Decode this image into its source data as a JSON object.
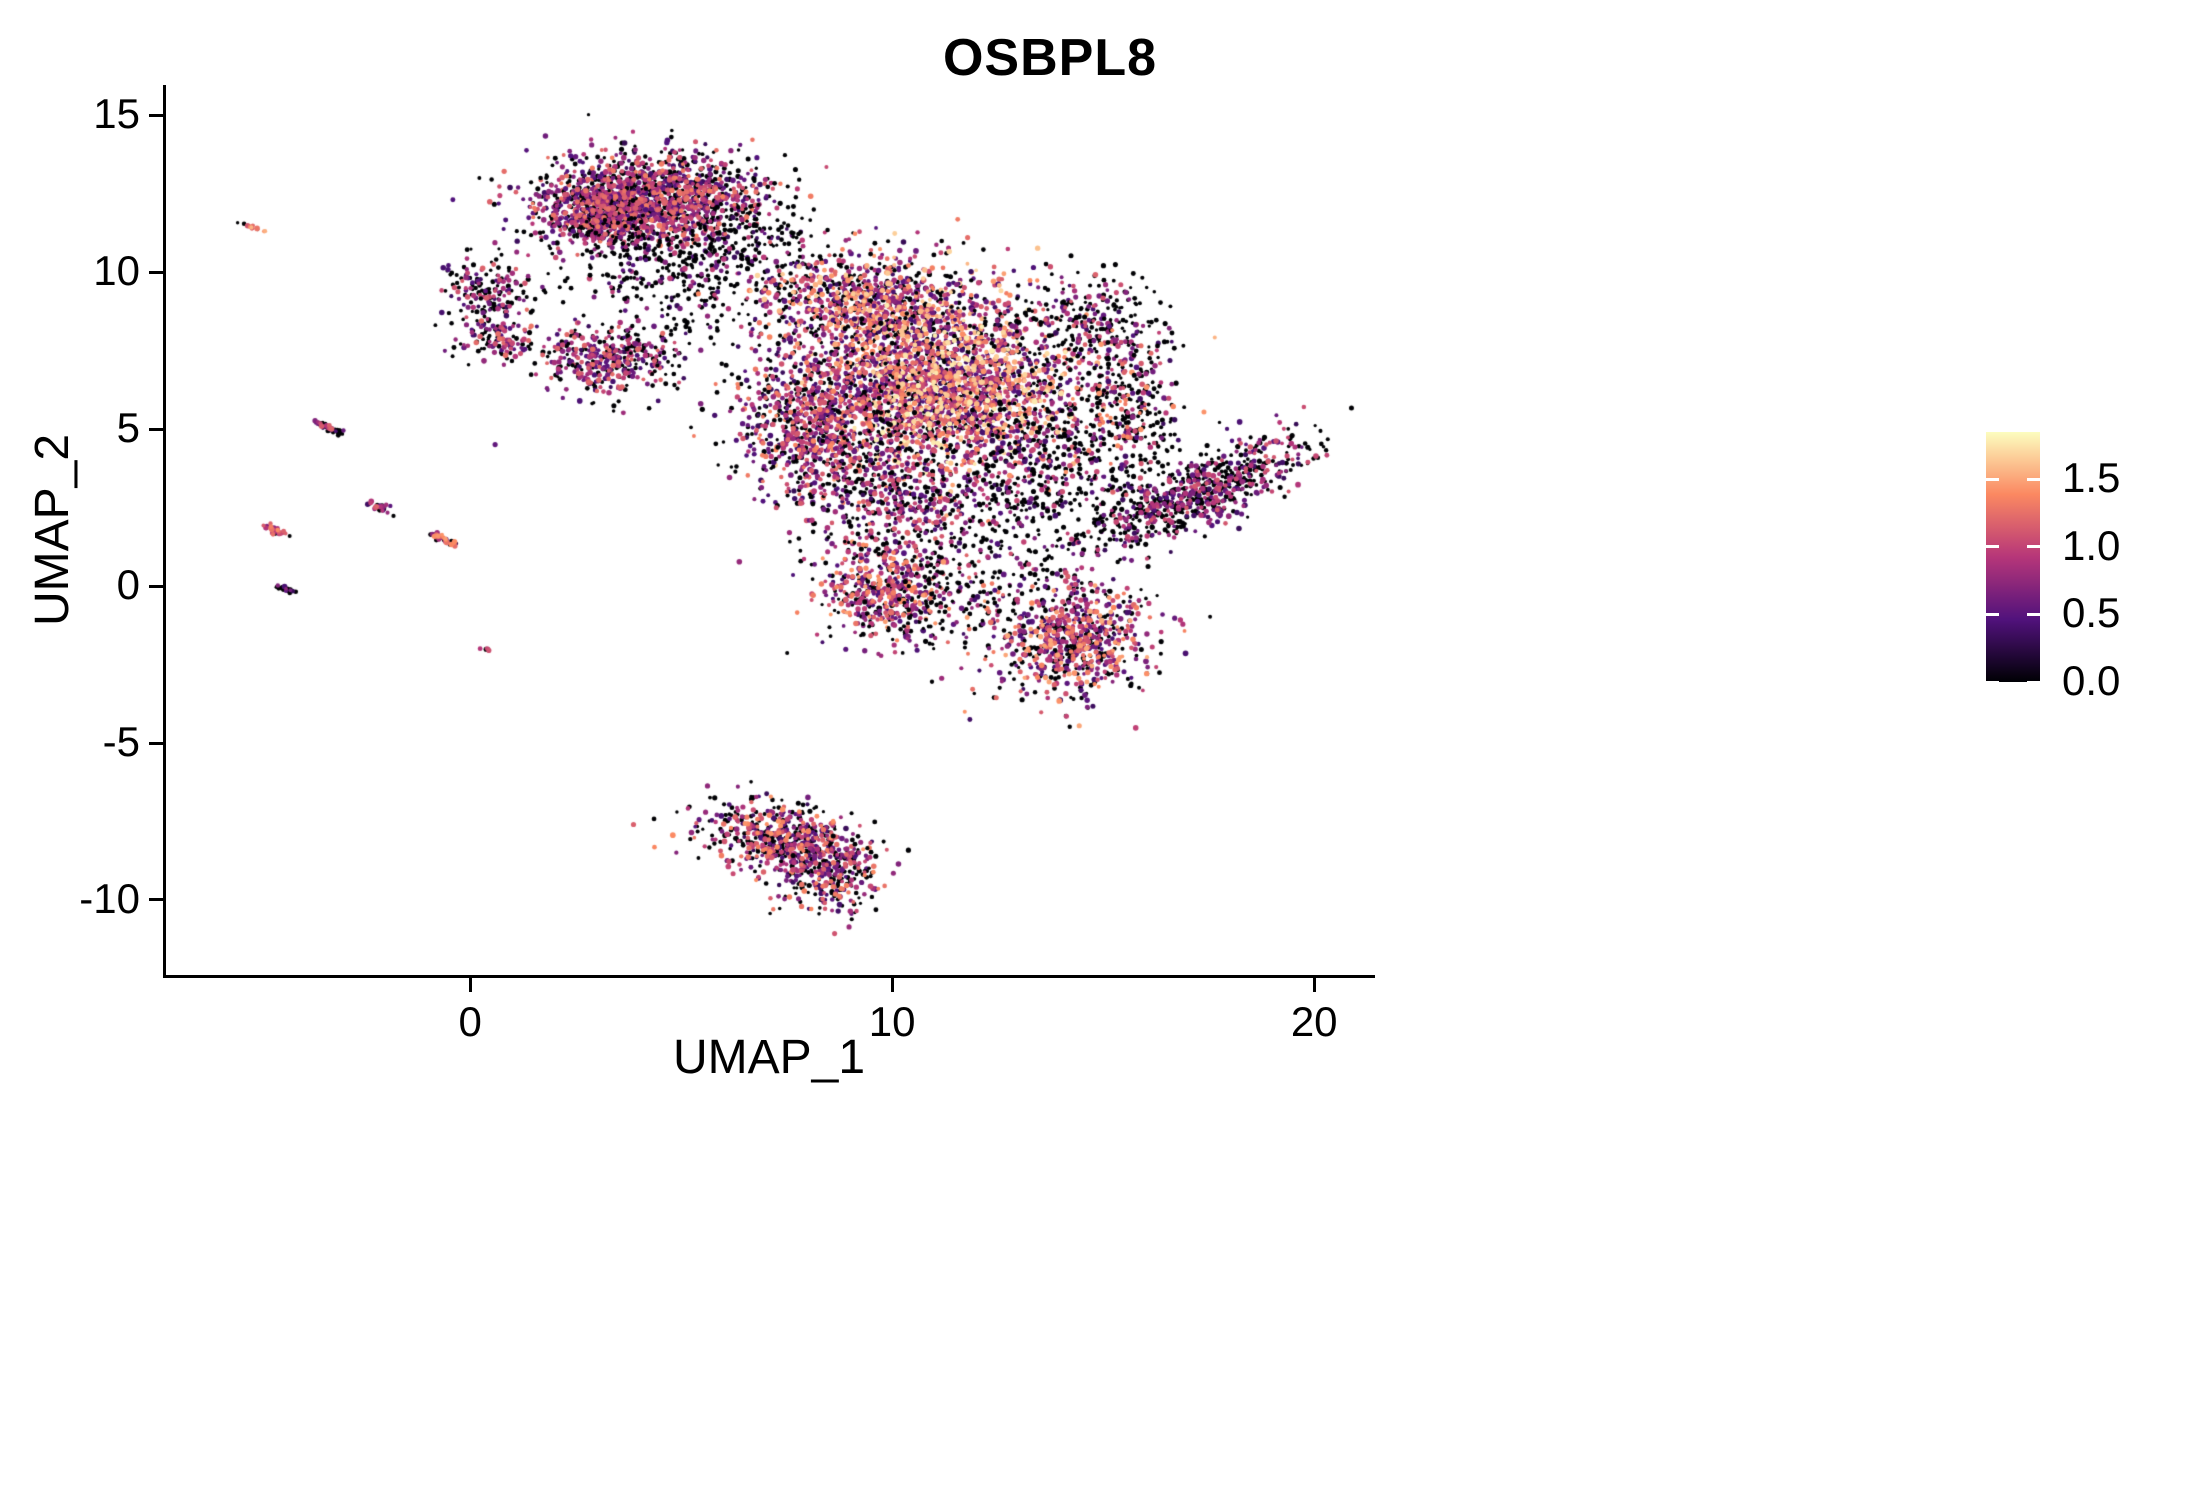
{
  "title": "OSBPL8",
  "chart_data": {
    "type": "scatter",
    "title": "OSBPL8",
    "subtitle": "",
    "xlabel": "UMAP_1",
    "ylabel": "UMAP_2",
    "xlim": [
      -7.23,
      21.37
    ],
    "ylim": [
      -12.39,
      15.96
    ],
    "grid": false,
    "legend_position": "right",
    "xticks": [
      {
        "value": 0,
        "label": "0"
      },
      {
        "value": 10,
        "label": "10"
      },
      {
        "value": 20,
        "label": "20"
      }
    ],
    "yticks": [
      {
        "value": -10,
        "label": "-10"
      },
      {
        "value": -5,
        "label": "-5"
      },
      {
        "value": 0,
        "label": "0"
      },
      {
        "value": 5,
        "label": "5"
      },
      {
        "value": 10,
        "label": "10"
      },
      {
        "value": 15,
        "label": "15"
      }
    ],
    "colorbar": {
      "vmin": 0,
      "vmax": 1.85,
      "colormap": "magma",
      "ticks": [
        {
          "value": 1.5,
          "label": "1.5"
        },
        {
          "value": 1.0,
          "label": "1.0"
        },
        {
          "value": 0.5,
          "label": "0.5"
        },
        {
          "value": 0.0,
          "label": "0.0"
        }
      ],
      "stops": [
        [
          0.0,
          "#000004"
        ],
        [
          0.25,
          "#51127c"
        ],
        [
          0.5,
          "#b63679"
        ],
        [
          0.75,
          "#fb8861"
        ],
        [
          1.0,
          "#fcfdbf"
        ]
      ]
    },
    "point_radius_px": {
      "min": 1.6,
      "max": 2.6
    },
    "seed": 7,
    "clusters": [
      {
        "name": "top-main",
        "n": 1500,
        "x": 4.3,
        "y": 12.3,
        "sx": 1.35,
        "sy": 0.75,
        "rot": 0,
        "zero": 0.38,
        "e0": 0.3,
        "e1": 1.35
      },
      {
        "name": "top-left-lobe",
        "n": 420,
        "x": 3.1,
        "y": 11.9,
        "sx": 0.6,
        "sy": 0.6,
        "rot": 0,
        "zero": 0.3,
        "e0": 0.4,
        "e1": 1.3
      },
      {
        "name": "top-under-sparse",
        "n": 330,
        "x": 5.0,
        "y": 10.2,
        "sx": 1.4,
        "sy": 0.9,
        "rot": 0,
        "zero": 0.75,
        "e0": 0.3,
        "e1": 1.0
      },
      {
        "name": "top-bridge",
        "n": 130,
        "x": 6.9,
        "y": 10.9,
        "sx": 1.0,
        "sy": 1.0,
        "rot": 0,
        "zero": 0.8,
        "e0": 0.3,
        "e1": 1.0
      },
      {
        "name": "left-small-a",
        "n": 170,
        "x": 0.3,
        "y": 9.4,
        "sx": 0.55,
        "sy": 0.5,
        "rot": 0,
        "zero": 0.45,
        "e0": 0.3,
        "e1": 1.2
      },
      {
        "name": "left-small-b",
        "n": 130,
        "x": 0.6,
        "y": 7.9,
        "sx": 0.5,
        "sy": 0.38,
        "rot": 0,
        "zero": 0.4,
        "e0": 0.3,
        "e1": 1.3
      },
      {
        "name": "mid-left",
        "n": 400,
        "x": 3.3,
        "y": 7.2,
        "sx": 0.75,
        "sy": 0.52,
        "rot": 0,
        "zero": 0.35,
        "e0": 0.3,
        "e1": 1.25
      },
      {
        "name": "mid-noise",
        "n": 90,
        "x": 4.5,
        "y": 8.8,
        "sx": 1.8,
        "sy": 1.5,
        "rot": 0,
        "zero": 0.85,
        "e0": 0.3,
        "e1": 0.9
      },
      {
        "name": "central-top",
        "n": 950,
        "x": 9.6,
        "y": 9.0,
        "sx": 1.35,
        "sy": 0.85,
        "rot": 0,
        "zero": 0.25,
        "e0": 0.3,
        "e1": 1.7
      },
      {
        "name": "central-main",
        "n": 2300,
        "x": 11.3,
        "y": 6.3,
        "sx": 1.5,
        "sy": 1.35,
        "rot": 0,
        "zero": 0.22,
        "e0": 0.3,
        "e1": 1.8
      },
      {
        "name": "central-left",
        "n": 900,
        "x": 8.3,
        "y": 5.2,
        "sx": 1.0,
        "sy": 1.2,
        "rot": 0,
        "zero": 0.3,
        "e0": 0.3,
        "e1": 1.4
      },
      {
        "name": "central-low",
        "n": 520,
        "x": 10.3,
        "y": 2.6,
        "sx": 1.3,
        "sy": 1.0,
        "rot": 0,
        "zero": 0.45,
        "e0": 0.3,
        "e1": 1.2
      },
      {
        "name": "central-bottom",
        "n": 520,
        "x": 9.9,
        "y": -0.2,
        "sx": 0.85,
        "sy": 0.75,
        "rot": 0,
        "zero": 0.3,
        "e0": 0.35,
        "e1": 1.5
      },
      {
        "name": "central-right-sparse",
        "n": 420,
        "x": 13.5,
        "y": 3.3,
        "sx": 1.0,
        "sy": 1.5,
        "rot": 0,
        "zero": 0.7,
        "e0": 0.3,
        "e1": 1.1
      },
      {
        "name": "arc-top",
        "n": 260,
        "x": 14.6,
        "y": 8.4,
        "sx": 0.85,
        "sy": 0.8,
        "rot": 0,
        "zero": 0.65,
        "e0": 0.3,
        "e1": 1.2
      },
      {
        "name": "arc-right",
        "n": 380,
        "x": 15.5,
        "y": 5.6,
        "sx": 0.65,
        "sy": 1.35,
        "rot": 0,
        "zero": 0.6,
        "e0": 0.3,
        "e1": 1.45
      },
      {
        "name": "right-arm",
        "n": 760,
        "x": 17.3,
        "y": 3.0,
        "sx": 1.5,
        "sy": 0.48,
        "rot": 0.58,
        "zero": 0.55,
        "e0": 0.3,
        "e1": 1.15
      },
      {
        "name": "noise-bridge-low",
        "n": 150,
        "x": 11.7,
        "y": -0.5,
        "sx": 1.2,
        "sy": 0.9,
        "rot": 0,
        "zero": 0.75,
        "e0": 0.3,
        "e1": 1.0
      },
      {
        "name": "low-right",
        "n": 760,
        "x": 14.3,
        "y": -1.7,
        "sx": 0.95,
        "sy": 0.95,
        "rot": -0.4,
        "zero": 0.32,
        "e0": 0.35,
        "e1": 1.55
      },
      {
        "name": "bottom-main",
        "n": 560,
        "x": 7.3,
        "y": -8.0,
        "sx": 0.95,
        "sy": 0.55,
        "rot": -0.2,
        "zero": 0.35,
        "e0": 0.3,
        "e1": 1.45
      },
      {
        "name": "bottom-tail",
        "n": 300,
        "x": 8.6,
        "y": -9.2,
        "sx": 0.55,
        "sy": 0.6,
        "rot": -0.6,
        "zero": 0.4,
        "e0": 0.3,
        "e1": 1.4
      },
      {
        "name": "streak-1",
        "n": 14,
        "x": -5.1,
        "y": 11.4,
        "sx": 0.12,
        "sy": 0.03,
        "rot": -0.45,
        "zero": 0.15,
        "e0": 1.0,
        "e1": 1.6
      },
      {
        "name": "streak-2",
        "n": 50,
        "x": -3.35,
        "y": 5.05,
        "sx": 0.2,
        "sy": 0.05,
        "rot": -0.5,
        "zero": 0.45,
        "e0": 0.3,
        "e1": 1.2
      },
      {
        "name": "streak-3",
        "n": 32,
        "x": -2.15,
        "y": 2.5,
        "sx": 0.16,
        "sy": 0.05,
        "rot": -0.5,
        "zero": 0.5,
        "e0": 0.3,
        "e1": 1.2
      },
      {
        "name": "streak-4",
        "n": 30,
        "x": -4.6,
        "y": 1.75,
        "sx": 0.18,
        "sy": 0.05,
        "rot": -0.5,
        "zero": 0.2,
        "e0": 0.6,
        "e1": 1.4
      },
      {
        "name": "streak-5",
        "n": 36,
        "x": -0.65,
        "y": 1.5,
        "sx": 0.18,
        "sy": 0.05,
        "rot": -0.5,
        "zero": 0.3,
        "e0": 0.5,
        "e1": 1.5
      },
      {
        "name": "streak-6",
        "n": 22,
        "x": -4.35,
        "y": -0.1,
        "sx": 0.14,
        "sy": 0.04,
        "rot": -0.5,
        "zero": 0.8,
        "e0": 0.3,
        "e1": 0.8
      },
      {
        "name": "dot-small",
        "n": 6,
        "x": 0.35,
        "y": -2.05,
        "sx": 0.06,
        "sy": 0.04,
        "rot": 0,
        "zero": 0.3,
        "e0": 0.7,
        "e1": 1.3
      }
    ]
  }
}
